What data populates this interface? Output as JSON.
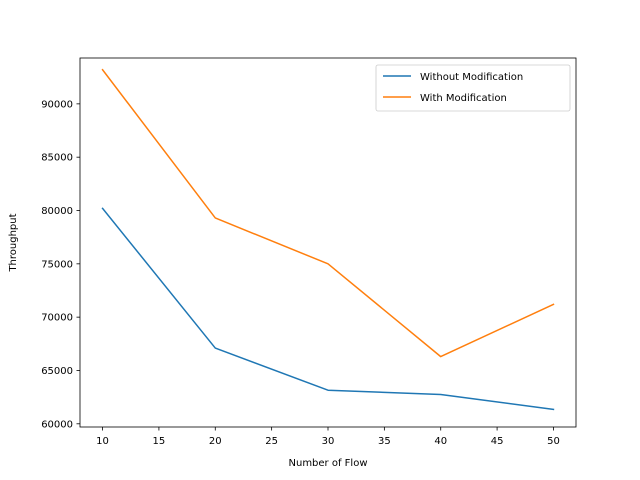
{
  "chart_data": {
    "type": "line",
    "title": "",
    "xlabel": "Number of Flow",
    "ylabel": "Throughput",
    "x": [
      10,
      20,
      30,
      40,
      50
    ],
    "xlim": [
      8,
      52
    ],
    "ylim": [
      59700,
      94300
    ],
    "xticks": [
      10,
      15,
      20,
      25,
      30,
      35,
      40,
      45,
      50
    ],
    "yticks": [
      60000,
      65000,
      70000,
      75000,
      80000,
      85000,
      90000
    ],
    "grid": false,
    "legend_position": "top-right",
    "series": [
      {
        "name": "Without Modification",
        "color": "#1f77b4",
        "values": [
          80200,
          67100,
          63150,
          62750,
          61350
        ]
      },
      {
        "name": "With Modification",
        "color": "#ff7f0e",
        "values": [
          93200,
          79300,
          75000,
          66300,
          71200
        ]
      }
    ]
  }
}
